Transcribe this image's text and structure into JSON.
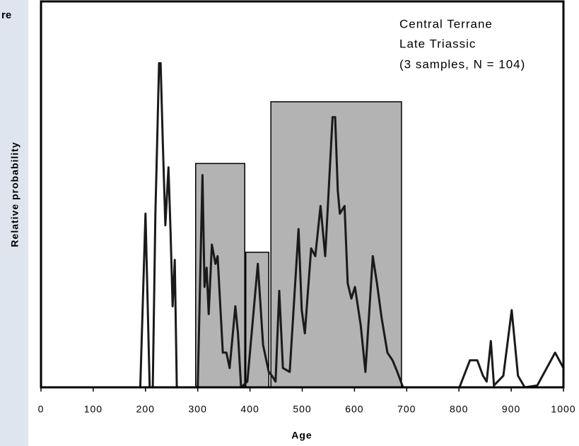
{
  "sidebar_text": "re",
  "chart_data": {
    "type": "line",
    "annotation": [
      "Central Terrane",
      "Late Triassic",
      "(3 samples, N = 104)"
    ],
    "xlabel": "Age",
    "ylabel": "Relative probability",
    "xlim": [
      0,
      1000
    ],
    "ylim": [
      0,
      100
    ],
    "xticks": [
      0,
      100,
      200,
      300,
      400,
      500,
      600,
      700,
      800,
      900,
      1000
    ],
    "boxes": {
      "color": "#b3b3b3",
      "starts": [
        296,
        392,
        440
      ],
      "ends": [
        390,
        436,
        690
      ],
      "heights": [
        58,
        35,
        74
      ]
    },
    "series": [
      {
        "name": "Relative probability",
        "color": "#1a1a1a",
        "x": [
          190,
          200,
          208,
          214,
          219,
          222,
          226,
          229,
          233,
          238,
          244,
          248,
          252,
          256,
          260,
          300,
          309,
          313,
          317,
          321,
          327,
          334,
          338,
          348,
          355,
          361,
          372,
          377,
          383,
          395,
          415,
          425,
          436,
          442,
          449,
          456,
          463,
          476,
          493,
          499,
          505,
          517,
          525,
          535,
          544,
          558,
          563,
          568,
          572,
          581,
          587,
          594,
          601,
          612,
          621,
          635,
          643,
          652,
          663,
          673,
          682,
          693,
          801,
          821,
          835,
          846,
          853,
          861,
          867,
          885,
          901,
          913,
          926,
          950,
          984,
          1000
        ],
        "values": [
          0,
          45,
          0,
          0,
          45,
          62,
          84,
          84,
          64,
          42,
          57,
          40,
          21,
          33,
          0,
          0,
          55,
          26,
          31,
          19,
          37,
          32,
          34,
          9,
          9,
          5,
          21,
          14,
          0,
          1.5,
          32,
          11,
          4,
          3,
          1.5,
          25,
          5,
          4,
          41,
          20,
          14,
          36,
          34,
          47,
          34,
          70,
          70,
          51,
          45,
          47,
          27,
          23,
          26,
          16,
          4,
          34,
          27,
          18,
          9,
          7,
          4,
          0,
          0,
          7,
          7,
          3,
          1.5,
          12,
          0.5,
          3,
          20,
          3,
          0,
          0.5,
          9,
          5
        ]
      }
    ]
  }
}
